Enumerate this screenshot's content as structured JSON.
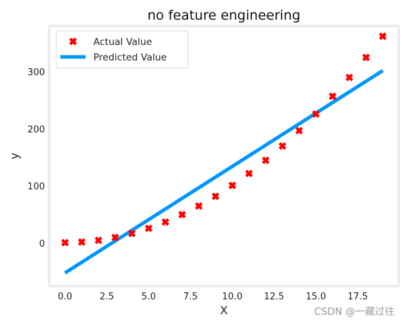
{
  "chart_data": {
    "type": "scatter",
    "title": "no feature engineering",
    "xlabel": "X",
    "ylabel": "y",
    "xlim": [
      -0.95,
      19.95
    ],
    "ylim": [
      -75,
      380
    ],
    "xticks": [
      0.0,
      2.5,
      5.0,
      7.5,
      10.0,
      12.5,
      15.0,
      17.5
    ],
    "xtick_labels": [
      "0.0",
      "2.5",
      "5.0",
      "7.5",
      "10.0",
      "12.5",
      "15.0",
      "17.5"
    ],
    "yticks": [
      0,
      100,
      200,
      300
    ],
    "ytick_labels": [
      "0",
      "100",
      "200",
      "300"
    ],
    "grid": false,
    "legend": {
      "position": "top-left",
      "entries": [
        "Actual Value",
        "Predicted Value"
      ]
    },
    "series": [
      {
        "name": "Actual Value",
        "kind": "scatter",
        "marker": "X",
        "color": "#ff0000",
        "x": [
          0,
          1,
          2,
          3,
          4,
          5,
          6,
          7,
          8,
          9,
          10,
          11,
          12,
          13,
          14,
          15,
          16,
          17,
          18,
          19
        ],
        "y": [
          1,
          2,
          5,
          10,
          17,
          26,
          37,
          50,
          65,
          82,
          101,
          122,
          145,
          170,
          197,
          226,
          257,
          290,
          325,
          362
        ]
      },
      {
        "name": "Predicted Value",
        "kind": "line",
        "color": "#0096ff",
        "x": [
          0,
          19
        ],
        "y": [
          -52,
          302
        ]
      }
    ]
  },
  "watermark": "CSDN @一藏过往"
}
